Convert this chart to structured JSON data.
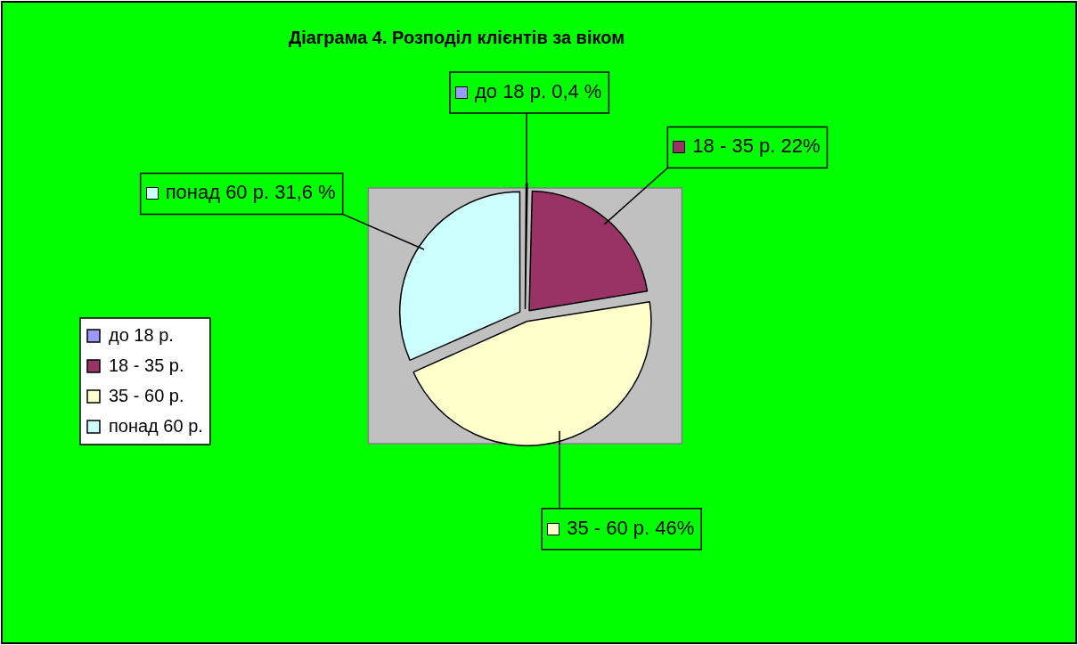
{
  "chart_data": {
    "type": "pie",
    "title": "Діаграма 4. Розподіл клієнтів за віком",
    "categories": [
      "до 18 р.",
      "18 - 35 р.",
      "35 - 60 р.",
      "понад 60 р."
    ],
    "values": [
      0.4,
      22,
      46,
      31.6
    ],
    "colors": [
      "#9999ff",
      "#993366",
      "#ffffcc",
      "#ccffff"
    ],
    "value_labels": [
      "0,4 %",
      "22%",
      "46%",
      "31,6 %"
    ],
    "legend": "left"
  }
}
